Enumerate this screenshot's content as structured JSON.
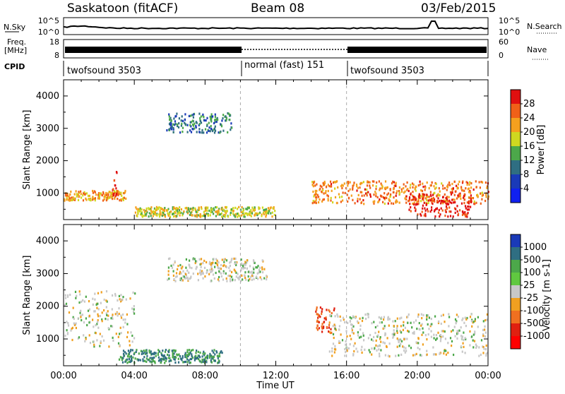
{
  "header": {
    "title_left": "Saskatoon (fitACF)",
    "title_center": "Beam 08",
    "title_right": "03/Feb/2015"
  },
  "top_panels": {
    "nsky_label": "N.Sky",
    "nsky_ticks": [
      "10^5",
      "10^0"
    ],
    "nsearch_label": "N.Search",
    "nsearch_ticks": [
      "10^5",
      "10^0"
    ],
    "freq_label_top": "Freq.",
    "freq_label_unit": "[MHz]",
    "freq_ticks": [
      "18",
      "8"
    ],
    "nave_label": "Nave",
    "nave_ticks": [
      "60",
      "0"
    ],
    "cpid_label": "CPID",
    "cpid_segments": [
      {
        "label": "twofsound 3503",
        "start_hour": 0,
        "end_hour": 10
      },
      {
        "label": "normal (fast) 151",
        "start_hour": 10,
        "end_hour": 16
      },
      {
        "label": "twofsound 3503",
        "start_hour": 16,
        "end_hour": 24
      }
    ]
  },
  "chart_data": [
    {
      "type": "heatmap",
      "title": "Power",
      "xlabel": "Time UT",
      "ylabel": "Slant Range [km]",
      "xlim_hours": [
        0,
        24
      ],
      "x_ticks": [
        "00:00",
        "04:00",
        "08:00",
        "12:00",
        "16:00",
        "20:00",
        "00:00"
      ],
      "ylim": [
        180,
        4500
      ],
      "y_ticks": [
        1000,
        2000,
        3000,
        4000
      ],
      "colorbar_label": "Power [dB]",
      "colorbar_ticks": [
        "28",
        "24",
        "20",
        "16",
        "12",
        "8",
        "4"
      ],
      "colorbar_colors": [
        "#e01010",
        "#f06018",
        "#f5a01e",
        "#cfd820",
        "#4ca84a",
        "#2f6e82",
        "#1a3ab8",
        "#1020f0"
      ],
      "features": [
        {
          "name": "evening band",
          "hours": [
            0,
            3.5
          ],
          "range_km": [
            800,
            1100
          ],
          "level_db": 20
        },
        {
          "name": "intense patch",
          "hours": [
            2.7,
            3.0
          ],
          "range_km": [
            950,
            1700
          ],
          "level_db": 28
        },
        {
          "name": "upper scatter",
          "hours": [
            5.8,
            9.5
          ],
          "range_km": [
            2900,
            3500
          ],
          "level_db": 8
        },
        {
          "name": "near range",
          "hours": [
            4,
            12
          ],
          "range_km": [
            300,
            600
          ],
          "level_db": 16
        },
        {
          "name": "morning band",
          "hours": [
            14,
            24
          ],
          "range_km": [
            700,
            1400
          ],
          "level_db": 22
        },
        {
          "name": "dayside strong echoes",
          "hours": [
            19.5,
            23
          ],
          "range_km": [
            300,
            1000
          ],
          "level_db": 28
        }
      ]
    },
    {
      "type": "heatmap",
      "title": "Velocity",
      "xlabel": "Time UT",
      "ylabel": "Slant Range [km]",
      "xlim_hours": [
        0,
        24
      ],
      "x_ticks": [
        "00:00",
        "04:00",
        "08:00",
        "12:00",
        "16:00",
        "20:00",
        "00:00"
      ],
      "ylim": [
        180,
        4500
      ],
      "y_ticks": [
        1000,
        2000,
        3000,
        4000
      ],
      "colorbar_label": "Velocity [m s-1]",
      "colorbar_ticks": [
        "1000",
        "500",
        "100",
        "25",
        "-25",
        "-100",
        "-500",
        "-1000"
      ],
      "colorbar_colors": [
        "#1a3ab8",
        "#2f6e82",
        "#4ca84a",
        "#60c840",
        "#c8c8c8",
        "#f0a020",
        "#f07020",
        "#e02010",
        "#ff0000"
      ],
      "features": [
        {
          "name": "ground scatter evening",
          "hours": [
            0,
            4
          ],
          "range_km": [
            800,
            2500
          ],
          "velocity": 0
        },
        {
          "name": "positive near range",
          "hours": [
            3,
            9
          ],
          "range_km": [
            300,
            700
          ],
          "velocity": 100
        },
        {
          "name": "upper ground scatter",
          "hours": [
            5.8,
            11.5
          ],
          "range_km": [
            2800,
            3500
          ],
          "velocity": 0
        },
        {
          "name": "negative patch",
          "hours": [
            14.2,
            15.3
          ],
          "range_km": [
            1200,
            2000
          ],
          "velocity": -500
        },
        {
          "name": "morning ground scatter",
          "hours": [
            15,
            24
          ],
          "range_km": [
            500,
            1800
          ],
          "velocity": 0
        }
      ]
    }
  ]
}
